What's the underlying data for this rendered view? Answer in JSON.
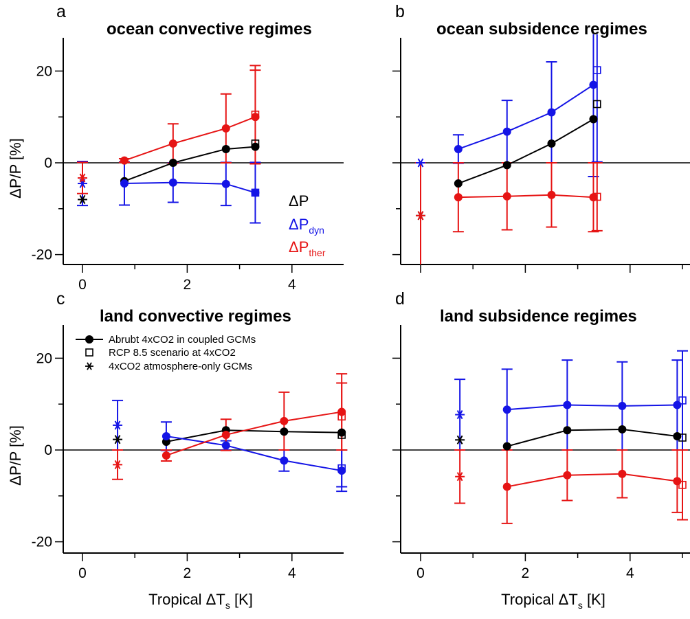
{
  "colors": {
    "total": "#000000",
    "dyn": "#1414e6",
    "ther": "#e61414"
  },
  "legend": {
    "coupled": "Abrubt 4xCO2 in coupled GCMs",
    "rcp": "RCP 8.5 scenario at 4xCO2",
    "atmos": "4xCO2 atmosphere-only GCMs",
    "dp": "ΔP",
    "dyn_base": "ΔP",
    "dyn_sub": "dyn",
    "ther_base": "ΔP",
    "ther_sub": "ther"
  },
  "chart_data": [
    {
      "type": "scatter",
      "panel": "a",
      "title": "ocean convective regimes",
      "ylabel": "ΔP/P [%]",
      "xlabel": "",
      "xlim": [
        -0.3,
        5.1
      ],
      "ylim": [
        -21,
        27
      ],
      "xticks": [
        "0",
        "2",
        "4"
      ],
      "yticks": [
        "-20",
        "0",
        "20"
      ],
      "coupled": {
        "x": [
          0.8,
          1.73,
          2.74,
          3.3
        ],
        "total": {
          "y": [
            -4.0,
            0.0,
            3.0,
            3.5
          ],
          "err": [
            null,
            null,
            null,
            null
          ]
        },
        "dyn": {
          "y": [
            -4.5,
            -4.3,
            -4.6,
            -6.5
          ],
          "err": [
            4.7,
            4.3,
            4.7,
            6.6
          ]
        },
        "ther": {
          "y": [
            0.5,
            4.2,
            7.5,
            10.0
          ],
          "err": [
            0.4,
            4.3,
            7.5,
            10.2
          ]
        }
      },
      "rcp": {
        "x": 3.3,
        "total": {
          "y": 4.2,
          "err": null
        },
        "dyn": {
          "y": -6.5,
          "err": null
        },
        "ther": {
          "y": 10.5,
          "err": 10.7
        }
      },
      "atmos": {
        "x": 0.0,
        "total": {
          "y": -8.0,
          "err": null
        },
        "dyn": {
          "y": -4.5,
          "err": 4.8
        },
        "ther": {
          "y": -3.3,
          "err": 3.4
        }
      }
    },
    {
      "type": "scatter",
      "panel": "b",
      "title": "ocean subsidence regimes",
      "ylabel": "",
      "xlabel": "",
      "xlim": [
        -0.3,
        5.1
      ],
      "ylim": [
        -21,
        27
      ],
      "xticks": [],
      "yticks": [],
      "coupled": {
        "x": [
          0.72,
          1.65,
          2.5,
          3.3
        ],
        "total": {
          "y": [
            -4.5,
            -0.5,
            4.2,
            9.5
          ],
          "err": [
            null,
            null,
            null,
            null
          ]
        },
        "dyn": {
          "y": [
            3.0,
            6.8,
            11.0,
            17.0
          ],
          "err": [
            3.1,
            6.8,
            11.0,
            20.0
          ]
        },
        "ther": {
          "y": [
            -7.5,
            -7.3,
            -7.0,
            -7.5
          ],
          "err": [
            7.5,
            7.3,
            7.0,
            7.5
          ]
        }
      },
      "rcp": {
        "x": 3.37,
        "total": {
          "y": 12.8,
          "err": null
        },
        "dyn": {
          "y": 20.2,
          "err": 20.0
        },
        "ther": {
          "y": -7.4,
          "err": 7.4
        }
      },
      "atmos": {
        "x": 0.0,
        "total": {
          "y": -11.5,
          "err": null
        },
        "dyn": {
          "y": 0.0,
          "err": null
        },
        "ther": {
          "y": -11.5,
          "err": 11.5
        }
      }
    },
    {
      "type": "scatter",
      "panel": "c",
      "title": "land convective regimes",
      "ylabel": "ΔP/P [%]",
      "xlabel": "Tropical ΔTs [K]",
      "xlim": [
        -0.3,
        5.1
      ],
      "ylim": [
        -21,
        27
      ],
      "xticks": [
        "0",
        "2",
        "4"
      ],
      "yticks": [
        "-20",
        "0",
        "20"
      ],
      "coupled": {
        "x": [
          1.6,
          2.74,
          3.85,
          4.95
        ],
        "total": {
          "y": [
            1.8,
            4.3,
            4.0,
            3.8
          ],
          "err": [
            null,
            null,
            null,
            null
          ]
        },
        "dyn": {
          "y": [
            3.0,
            1.0,
            -2.3,
            -4.5
          ],
          "err": [
            3.1,
            1.0,
            2.3,
            4.5
          ]
        },
        "ther": {
          "y": [
            -1.2,
            3.3,
            6.3,
            8.3
          ],
          "err": [
            1.2,
            3.4,
            6.3,
            8.3
          ]
        }
      },
      "rcp": {
        "x": 4.95,
        "total": {
          "y": 3.3,
          "err": null
        },
        "dyn": {
          "y": -4.0,
          "err": 4.0
        },
        "ther": {
          "y": 7.3,
          "err": 7.3
        }
      },
      "atmos": {
        "x": 0.67,
        "total": {
          "y": 2.3,
          "err": null
        },
        "dyn": {
          "y": 5.4,
          "err": 5.4
        },
        "ther": {
          "y": -3.2,
          "err": 3.2
        }
      }
    },
    {
      "type": "scatter",
      "panel": "d",
      "title": "land subsidence regimes",
      "ylabel": "",
      "xlabel": "Tropical ΔTs [K]",
      "xlim": [
        -0.3,
        5.1
      ],
      "ylim": [
        -21,
        27
      ],
      "xticks": [
        "0",
        "2",
        "4"
      ],
      "yticks": [],
      "coupled": {
        "x": [
          1.65,
          2.8,
          3.85,
          4.9
        ],
        "total": {
          "y": [
            0.8,
            4.3,
            4.5,
            3.0
          ],
          "err": [
            null,
            null,
            null,
            null
          ]
        },
        "dyn": {
          "y": [
            8.8,
            9.8,
            9.6,
            9.8
          ],
          "err": [
            8.8,
            9.8,
            9.6,
            9.8
          ]
        },
        "ther": {
          "y": [
            -8.0,
            -5.5,
            -5.2,
            -6.8
          ],
          "err": [
            8.0,
            5.5,
            5.2,
            6.8
          ]
        }
      },
      "rcp": {
        "x": 5.0,
        "total": {
          "y": 2.7,
          "err": null
        },
        "dyn": {
          "y": 10.8,
          "err": 10.8
        },
        "ther": {
          "y": -7.6,
          "err": 7.6
        }
      },
      "atmos": {
        "x": 0.75,
        "total": {
          "y": 2.2,
          "err": null
        },
        "dyn": {
          "y": 7.7,
          "err": 7.7
        },
        "ther": {
          "y": -5.8,
          "err": 5.8
        }
      }
    }
  ]
}
